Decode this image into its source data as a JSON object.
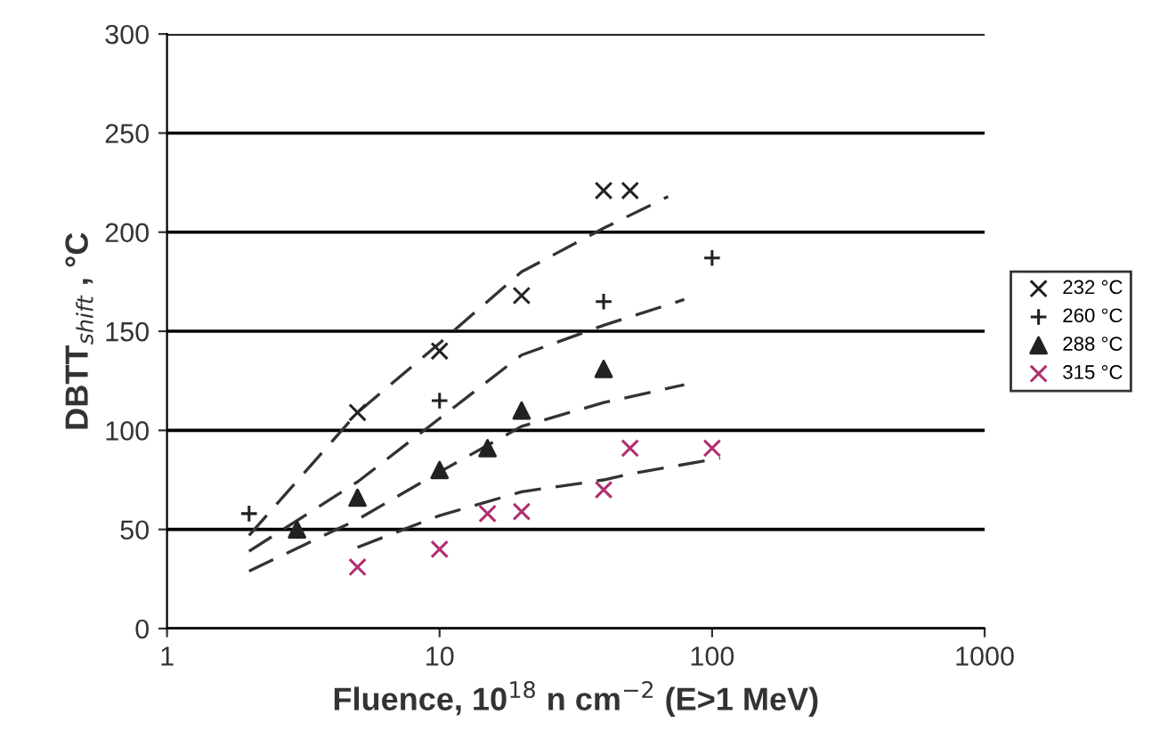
{
  "chart_data": {
    "type": "scatter",
    "xlabel": "Fluence, 10$^{18}$ n cm$^{−2}$ (E>1 MeV)",
    "ylabel": "DBTT$_{shift}$ , °C",
    "log": "x",
    "xlim": [
      1,
      1000
    ],
    "xticks": [
      1,
      10,
      100,
      1000
    ],
    "ylim": [
      0,
      300
    ],
    "yticks": [
      0,
      50,
      100,
      150,
      200,
      250,
      300
    ],
    "grid": "y",
    "legend": "right",
    "series": [
      {
        "name": "232 °C",
        "marker": "cross",
        "color": "#222222",
        "x": [
          5,
          10,
          20,
          40,
          50
        ],
        "values": [
          109,
          140,
          168,
          221,
          221
        ]
      },
      {
        "name": "260 °C",
        "marker": "plus",
        "color": "#222222",
        "x": [
          2,
          10,
          40,
          100
        ],
        "values": [
          58,
          115,
          165,
          187
        ]
      },
      {
        "name": "288 °C",
        "marker": "triangle",
        "color": "#222222",
        "x": [
          3,
          5,
          10,
          15,
          20,
          40
        ],
        "values": [
          50,
          66,
          80,
          91,
          110,
          131
        ]
      },
      {
        "name": "315 °C",
        "marker": "cross",
        "color": "#b03070",
        "x": [
          5,
          10,
          15,
          20,
          40,
          50,
          100
        ],
        "values": [
          31,
          40,
          58,
          59,
          70,
          91,
          91
        ]
      },
      {
        "type": "line",
        "line_style": "dashed",
        "color": "#333333",
        "x": [
          2,
          5,
          10,
          20,
          40,
          69
        ],
        "values": [
          47,
          109,
          144,
          180,
          202,
          218
        ]
      },
      {
        "type": "line",
        "line_style": "dashed",
        "color": "#333333",
        "x": [
          2,
          5,
          10,
          20,
          40,
          79
        ],
        "values": [
          39,
          74,
          106,
          138,
          153,
          166
        ]
      },
      {
        "type": "line",
        "line_style": "dashed",
        "color": "#333333",
        "x": [
          2,
          5,
          10,
          20,
          40,
          79
        ],
        "values": [
          29,
          55,
          79,
          102,
          114,
          123
        ]
      },
      {
        "type": "line",
        "line_style": "dashed",
        "color": "#333333",
        "x": [
          5,
          10,
          20,
          40,
          50,
          107
        ],
        "values": [
          41,
          57,
          69,
          75,
          78,
          86
        ]
      }
    ]
  }
}
